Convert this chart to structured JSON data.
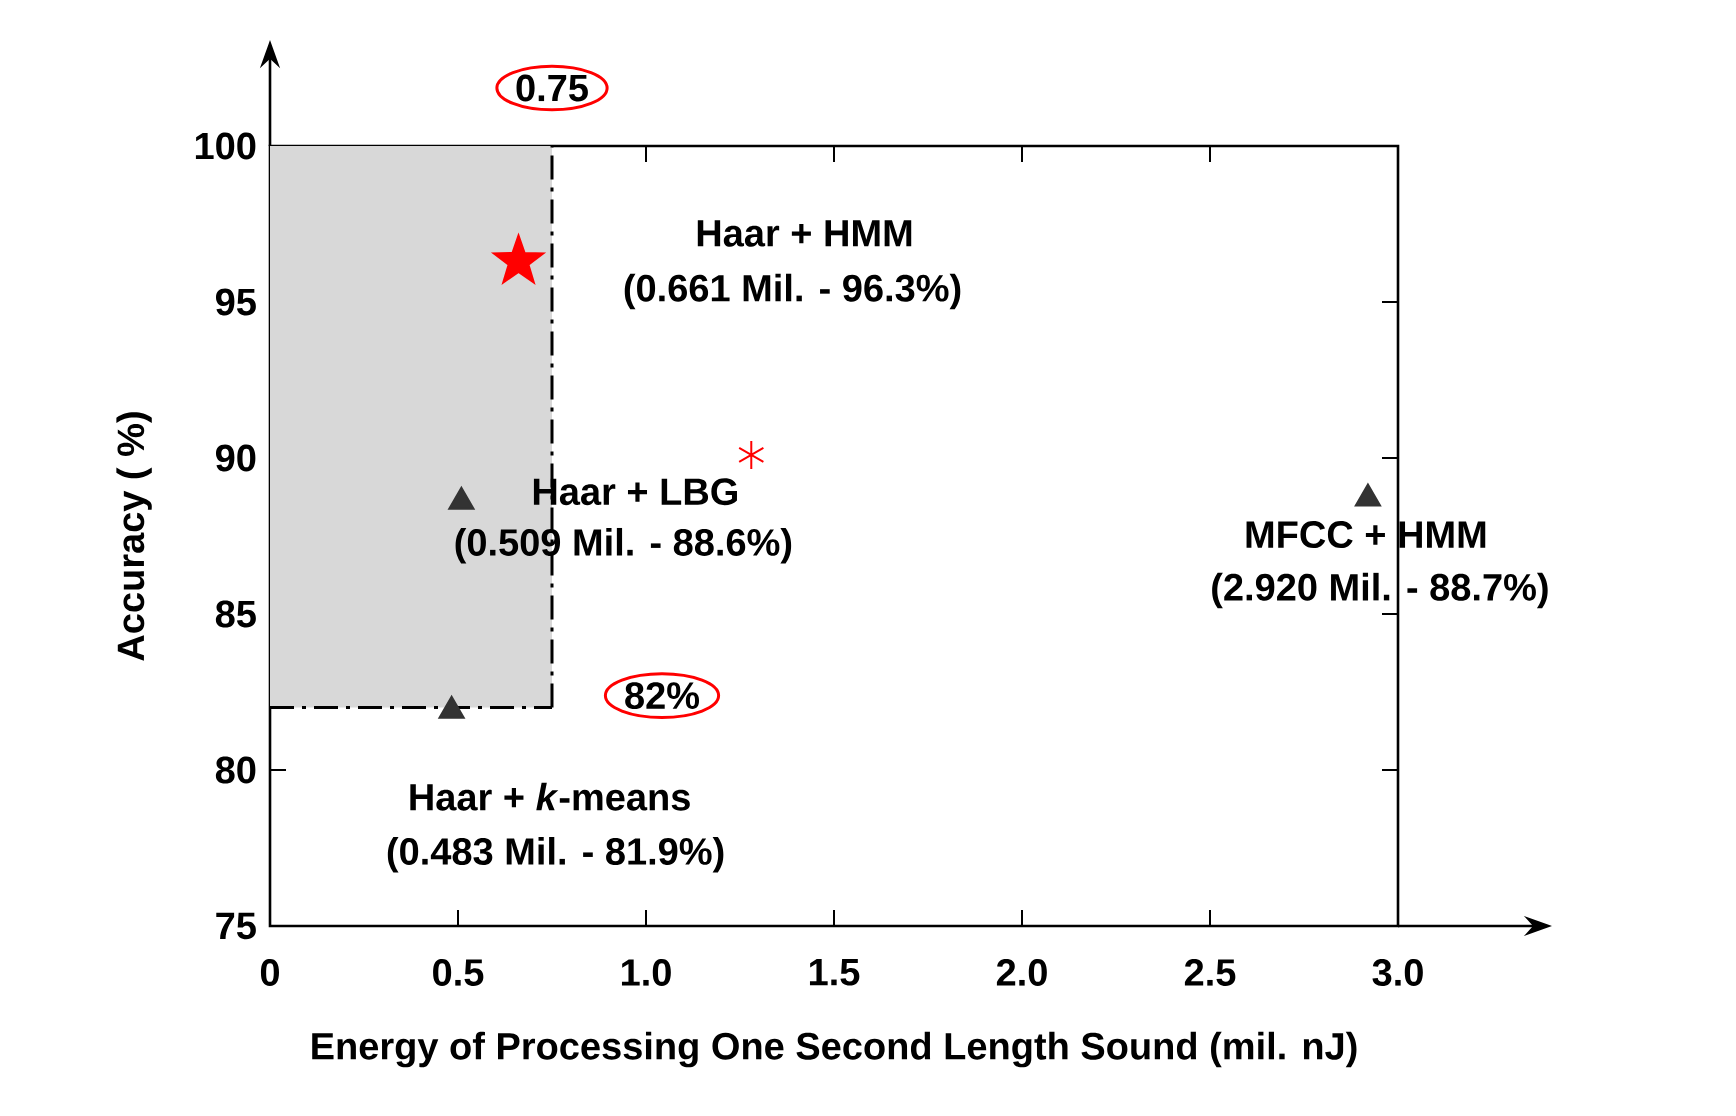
{
  "chart_data": {
    "type": "scatter",
    "xlabel": "Energy of Processing One Second Length Sound  (mil. nJ)",
    "ylabel": "Accuracy  ( %)",
    "xlim": [
      0,
      3
    ],
    "ylim": [
      75,
      100
    ],
    "xticks": [
      0,
      0.5,
      {
        "value": 1,
        "label": "1.0"
      },
      1.5,
      {
        "value": 2,
        "label": "2.0"
      },
      2.5,
      {
        "value": 3,
        "label": "3.0"
      }
    ],
    "yticks": [
      75,
      80,
      85,
      90,
      95,
      100
    ],
    "series": [
      {
        "color": "#333333",
        "marker": "triangle",
        "x": [
          0.509,
          0.483,
          2.92
        ],
        "values": [
          88.6,
          81.9,
          88.7
        ]
      },
      {
        "color": "#ff0000",
        "marker": "star",
        "x": [
          0.661
        ],
        "values": [
          96.3
        ]
      },
      {
        "color": "#ff0000",
        "marker": "cross",
        "x": [
          1.28
        ],
        "values": [
          90.1
        ]
      }
    ],
    "ref_lines": [
      {
        "axis": "x",
        "value": 0.75,
        "label": "0.75",
        "line_style": "dashed",
        "color": "#000000"
      },
      {
        "axis": "y",
        "value": 82,
        "label": "82%",
        "line_style": "dashed",
        "color": "#000000"
      }
    ],
    "bands": [
      {
        "axis": "x",
        "from": 0,
        "to": 0.75,
        "color": "#d8d8d8"
      }
    ],
    "annotations": [
      "Haar + HMM",
      {
        "text": "(0.661 Mil. - 96.3%)",
        "x": 0.661,
        "y": 96.3
      },
      {
        "text": "Haar + LBG",
        "x": 0.509,
        "y": 88.6
      },
      {
        "text": "(0.509 Mil. - 88.6%)",
        "x": 0.509,
        "y": 88.6
      },
      {
        "text": "Haar + *k*-means",
        "x": 0.483,
        "y": 81.9
      },
      "(0.483 Mil. - 81.9%)",
      {
        "text": "MFCC + HMM",
        "x": 2.92,
        "y": 88.7
      },
      {
        "text": "(2.920 Mil. - 88.7%)",
        "x": 2.92,
        "y": 88.7
      }
    ]
  }
}
